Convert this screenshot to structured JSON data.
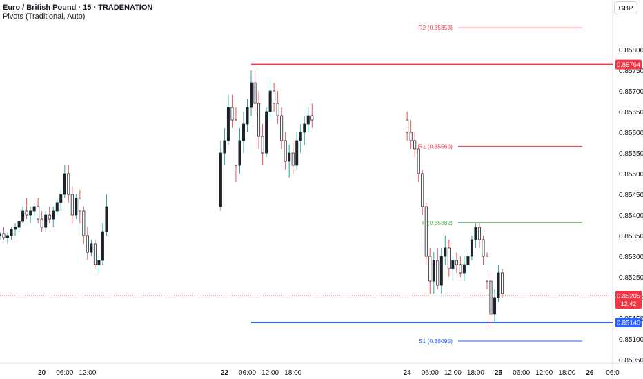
{
  "header": {
    "symbol_line": "Euro / British Pound · 15 · TRADENATION",
    "indicator_line": "Pivots (Traditional, Auto)",
    "currency": "GBP"
  },
  "countdown": "12:42",
  "colors": {
    "up": "#26a69a",
    "down": "#ef5350",
    "candle_body": "#1e222d",
    "resistance": "#f23645",
    "support": "#2962ff",
    "pivot": "#4caf50",
    "axis_text": "#131722",
    "last_price": "#f23645"
  },
  "chart_data": {
    "type": "candlestick",
    "title": "Euro / British Pound · 15 · TRADENATION",
    "y_axis": {
      "range": [
        0.8505,
        0.85865
      ],
      "ticks": [
        "0.85800",
        "0.85750",
        "0.85700",
        "0.85650",
        "0.85600",
        "0.85550",
        "0.85500",
        "0.85450",
        "0.85400",
        "0.85350",
        "0.85300",
        "0.85250",
        "0.85200",
        "0.85150",
        "0.85100",
        "0.85050"
      ]
    },
    "x_axis": {
      "start": "19 13:00",
      "end": "26 06:00",
      "ticks": [
        {
          "label": "20",
          "bold": true,
          "t": "20 00:00"
        },
        {
          "label": "06:00",
          "t": "20 06:00"
        },
        {
          "label": "12:00",
          "t": "20 12:00"
        },
        {
          "label": "22",
          "bold": true,
          "t": "22 00:00"
        },
        {
          "label": "06:00",
          "t": "22 06:00"
        },
        {
          "label": "12:00",
          "t": "22 12:00"
        },
        {
          "label": "18:00",
          "t": "22 18:00"
        },
        {
          "label": "24",
          "bold": true,
          "t": "24 00:00"
        },
        {
          "label": "06:00",
          "t": "24 06:00"
        },
        {
          "label": "12:00",
          "t": "24 12:00"
        },
        {
          "label": "18:00",
          "t": "24 18:00"
        },
        {
          "label": "25",
          "bold": true,
          "t": "25 00:00"
        },
        {
          "label": "06:00",
          "t": "25 06:00"
        },
        {
          "label": "12:00",
          "t": "25 12:00"
        },
        {
          "label": "18:00",
          "t": "25 18:00"
        },
        {
          "label": "26",
          "bold": true,
          "t": "26 00:00"
        },
        {
          "label": "06:0",
          "t": "26 06:00"
        }
      ]
    },
    "pivots": [
      {
        "label": "R2 (0.85853)",
        "value": 0.85853,
        "color": "#f23645",
        "from": "22 07:00",
        "to": "25 22:00"
      },
      {
        "label": "R1 (0.85566)",
        "value": 0.85566,
        "color": "#f23645",
        "from": "22 07:00",
        "to": "25 22:00"
      },
      {
        "label": "P (0.85382)",
        "value": 0.85382,
        "color": "#4caf50",
        "from": "22 07:00",
        "to": "25 22:00"
      },
      {
        "label": "S1 (0.85095)",
        "value": 0.85095,
        "color": "#2962ff",
        "from": "22 07:00",
        "to": "25 22:00"
      }
    ],
    "horizontal_lines": [
      {
        "value": 0.85764,
        "label": "0.85764",
        "color": "#f23645",
        "from": "22 07:00"
      },
      {
        "value": 0.8514,
        "label": "0.85140",
        "color": "#2962ff",
        "from": "22 07:00"
      }
    ],
    "last_price": {
      "value": 0.85205,
      "label": "0.85205"
    },
    "candles": [
      [
        "19 13:00",
        0.8535,
        0.8536,
        0.8534,
        0.85355
      ],
      [
        "19 14:00",
        0.85355,
        0.8537,
        0.8534,
        0.85345
      ],
      [
        "19 15:00",
        0.85345,
        0.8536,
        0.8533,
        0.8535
      ],
      [
        "19 16:00",
        0.8535,
        0.8537,
        0.8534,
        0.85365
      ],
      [
        "19 17:00",
        0.85365,
        0.8538,
        0.8535,
        0.8537
      ],
      [
        "19 18:00",
        0.8537,
        0.8539,
        0.8536,
        0.85385
      ],
      [
        "19 19:00",
        0.85385,
        0.8542,
        0.8538,
        0.8541
      ],
      [
        "19 20:00",
        0.8541,
        0.8544,
        0.8539,
        0.854
      ],
      [
        "19 21:00",
        0.854,
        0.8542,
        0.8538,
        0.8541
      ],
      [
        "19 22:00",
        0.8541,
        0.8543,
        0.8539,
        0.8542
      ],
      [
        "19 23:00",
        0.8542,
        0.8544,
        0.8538,
        0.8539
      ],
      [
        "20 00:00",
        0.8539,
        0.8541,
        0.8536,
        0.8537
      ],
      [
        "20 01:00",
        0.8537,
        0.8541,
        0.8536,
        0.854
      ],
      [
        "20 02:00",
        0.854,
        0.8542,
        0.8538,
        0.8539
      ],
      [
        "20 03:00",
        0.8539,
        0.8542,
        0.8537,
        0.8541
      ],
      [
        "20 04:00",
        0.8541,
        0.8544,
        0.854,
        0.8543
      ],
      [
        "20 05:00",
        0.8543,
        0.8546,
        0.8541,
        0.8545
      ],
      [
        "20 06:00",
        0.8545,
        0.8552,
        0.8544,
        0.855
      ],
      [
        "20 07:00",
        0.855,
        0.8552,
        0.8543,
        0.8545
      ],
      [
        "20 08:00",
        0.8545,
        0.8547,
        0.8538,
        0.854
      ],
      [
        "20 09:00",
        0.854,
        0.8545,
        0.8539,
        0.8544
      ],
      [
        "20 10:00",
        0.8544,
        0.8546,
        0.8538,
        0.8541
      ],
      [
        "20 11:00",
        0.8541,
        0.8542,
        0.8533,
        0.8535
      ],
      [
        "20 12:00",
        0.8535,
        0.8537,
        0.8529,
        0.8531
      ],
      [
        "20 13:00",
        0.8531,
        0.8534,
        0.853,
        0.8533
      ],
      [
        "20 14:00",
        0.8533,
        0.8534,
        0.8527,
        0.8528
      ],
      [
        "20 15:00",
        0.8528,
        0.853,
        0.8526,
        0.8529
      ],
      [
        "20 16:00",
        0.8529,
        0.8538,
        0.8528,
        0.8536
      ],
      [
        "20 17:00",
        0.8536,
        0.8545,
        0.8535,
        0.8542
      ],
      [
        "21 23:00",
        0.8542,
        0.8558,
        0.8541,
        0.8555
      ],
      [
        "22 00:00",
        0.8555,
        0.8561,
        0.8552,
        0.8558
      ],
      [
        "22 01:00",
        0.8558,
        0.8569,
        0.8557,
        0.8566
      ],
      [
        "22 02:00",
        0.8566,
        0.8569,
        0.8561,
        0.8563
      ],
      [
        "22 03:00",
        0.8563,
        0.8566,
        0.8548,
        0.8552
      ],
      [
        "22 04:00",
        0.8552,
        0.8561,
        0.855,
        0.8558
      ],
      [
        "22 05:00",
        0.8558,
        0.8565,
        0.8555,
        0.8562
      ],
      [
        "22 06:00",
        0.8562,
        0.8568,
        0.856,
        0.8566
      ],
      [
        "22 07:00",
        0.8566,
        0.8575,
        0.8564,
        0.8572
      ],
      [
        "22 08:00",
        0.8572,
        0.8575,
        0.8565,
        0.8567
      ],
      [
        "22 09:00",
        0.8567,
        0.857,
        0.8556,
        0.8559
      ],
      [
        "22 10:00",
        0.8559,
        0.8562,
        0.8552,
        0.8555
      ],
      [
        "22 11:00",
        0.8555,
        0.8566,
        0.8554,
        0.8565
      ],
      [
        "22 12:00",
        0.8565,
        0.8573,
        0.8563,
        0.857
      ],
      [
        "22 13:00",
        0.857,
        0.8572,
        0.8565,
        0.8567
      ],
      [
        "22 14:00",
        0.8567,
        0.857,
        0.8562,
        0.8564
      ],
      [
        "22 15:00",
        0.8564,
        0.8566,
        0.8556,
        0.8558
      ],
      [
        "22 16:00",
        0.8558,
        0.856,
        0.8551,
        0.8553
      ],
      [
        "22 17:00",
        0.8553,
        0.8557,
        0.8549,
        0.8555
      ],
      [
        "22 18:00",
        0.8555,
        0.8558,
        0.855,
        0.8552
      ],
      [
        "22 19:00",
        0.8552,
        0.856,
        0.8551,
        0.8558
      ],
      [
        "22 20:00",
        0.8558,
        0.8562,
        0.8555,
        0.856
      ],
      [
        "22 21:00",
        0.856,
        0.8564,
        0.8557,
        0.8562
      ],
      [
        "22 22:00",
        0.8562,
        0.8566,
        0.856,
        0.8564
      ],
      [
        "22 23:00",
        0.8564,
        0.8567,
        0.8561,
        0.8563
      ],
      [
        "24 00:00",
        0.8563,
        0.8565,
        0.8558,
        0.856
      ],
      [
        "24 01:00",
        0.856,
        0.8563,
        0.8556,
        0.8558
      ],
      [
        "24 02:00",
        0.8558,
        0.856,
        0.8554,
        0.8556
      ],
      [
        "24 03:00",
        0.8556,
        0.8557,
        0.8548,
        0.855
      ],
      [
        "24 04:00",
        0.855,
        0.8551,
        0.854,
        0.8542
      ],
      [
        "24 05:00",
        0.8542,
        0.8543,
        0.8528,
        0.853
      ],
      [
        "24 06:00",
        0.853,
        0.8532,
        0.8521,
        0.8524
      ],
      [
        "24 07:00",
        0.8524,
        0.8531,
        0.8521,
        0.8529
      ],
      [
        "24 08:00",
        0.8529,
        0.8532,
        0.8522,
        0.8523
      ],
      [
        "24 09:00",
        0.8523,
        0.8532,
        0.8521,
        0.853
      ],
      [
        "24 10:00",
        0.853,
        0.8535,
        0.8528,
        0.8532
      ],
      [
        "24 11:00",
        0.8532,
        0.8534,
        0.8525,
        0.8527
      ],
      [
        "24 12:00",
        0.8527,
        0.853,
        0.8524,
        0.8529
      ],
      [
        "24 13:00",
        0.8529,
        0.8531,
        0.8526,
        0.8528
      ],
      [
        "24 14:00",
        0.8528,
        0.853,
        0.8525,
        0.8526
      ],
      [
        "24 15:00",
        0.8526,
        0.853,
        0.8524,
        0.8528
      ],
      [
        "24 16:00",
        0.8528,
        0.8531,
        0.8526,
        0.853
      ],
      [
        "24 17:00",
        0.853,
        0.8535,
        0.8529,
        0.8534
      ],
      [
        "24 18:00",
        0.8534,
        0.8538,
        0.8532,
        0.8537
      ],
      [
        "24 19:00",
        0.8537,
        0.8538,
        0.8532,
        0.8534
      ],
      [
        "24 20:00",
        0.8534,
        0.8535,
        0.8528,
        0.853
      ],
      [
        "24 21:00",
        0.853,
        0.8531,
        0.8522,
        0.8524
      ],
      [
        "24 22:00",
        0.8524,
        0.8526,
        0.8513,
        0.8516
      ],
      [
        "24 23:00",
        0.8516,
        0.8522,
        0.8514,
        0.852
      ],
      [
        "25 00:00",
        0.852,
        0.8528,
        0.8519,
        0.8526
      ],
      [
        "25 01:00",
        0.8526,
        0.8527,
        0.852,
        0.8521
      ]
    ]
  }
}
